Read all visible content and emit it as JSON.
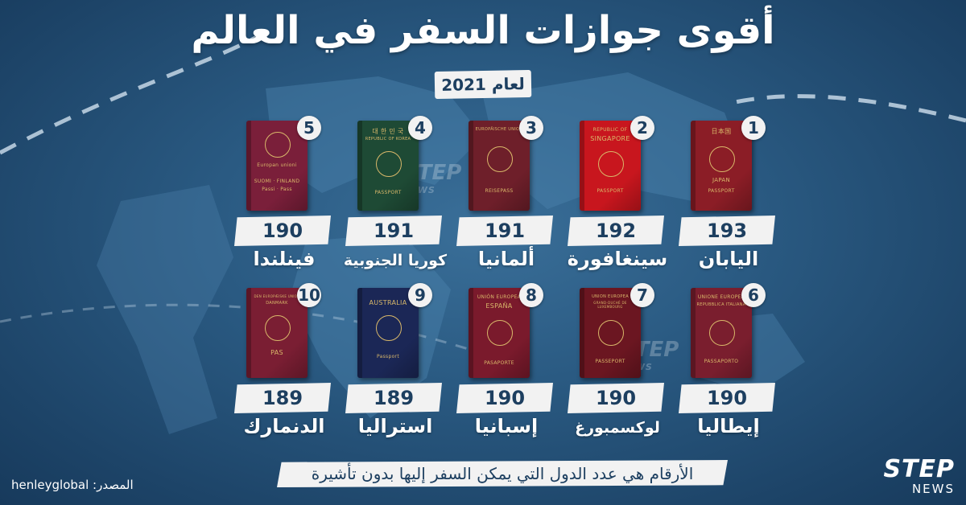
{
  "title": "أقوى جوازات السفر في العالم",
  "year_label": "لعام 2021",
  "passports": [
    {
      "rank": "1",
      "count": "193",
      "country": "اليابان",
      "color": "#8b1d26",
      "cover_top": "日本国",
      "cover_mid": "JAPAN",
      "cover_bottom": "PASSPORT"
    },
    {
      "rank": "2",
      "count": "192",
      "country": "سينغافورة",
      "color": "#c8161e",
      "cover_top": "REPUBLIC OF",
      "cover_mid": "SINGAPORE",
      "cover_bottom": "PASSPORT"
    },
    {
      "rank": "3",
      "count": "191",
      "country": "ألمانيا",
      "color": "#6e1f2a",
      "cover_top": "EUROPÄISCHE UNION",
      "cover_mid": "",
      "cover_bottom": "REISEPASS"
    },
    {
      "rank": "4",
      "count": "191",
      "country": "كوريا الجنوبية",
      "color": "#1e4a35",
      "cover_top": "대 한 민 국",
      "cover_mid": "REPUBLIC OF KOREA",
      "cover_bottom": "PASSPORT"
    },
    {
      "rank": "5",
      "count": "190",
      "country": "فينلندا",
      "color": "#7a1f3a",
      "cover_top": "Europan unioni",
      "cover_mid": "SUOMI · FINLAND",
      "cover_bottom": "Passi · Pass"
    },
    {
      "rank": "6",
      "count": "190",
      "country": "إيطاليا",
      "color": "#7a1e2e",
      "cover_top": "UNIONE EUROPEA",
      "cover_mid": "REPUBBLICA ITALIANA",
      "cover_bottom": "PASSAPORTO"
    },
    {
      "rank": "7",
      "count": "190",
      "country": "لوكسمبورغ",
      "color": "#6b1621",
      "cover_top": "UNION EUROPEA",
      "cover_mid": "GRAND-DUCHÉ DE LUXEMBOURG",
      "cover_bottom": "PASSEPORT"
    },
    {
      "rank": "8",
      "count": "190",
      "country": "إسبانيا",
      "color": "#7a1a2c",
      "cover_top": "UNIÓN EUROPEA",
      "cover_mid": "ESPAÑA",
      "cover_bottom": "PASAPORTE"
    },
    {
      "rank": "9",
      "count": "189",
      "country": "استراليا",
      "color": "#1b2756",
      "cover_top": "AUSTRALIA",
      "cover_mid": "",
      "cover_bottom": "Passport"
    },
    {
      "rank": "10",
      "count": "189",
      "country": "الدنمارك",
      "color": "#7a1e33",
      "cover_top": "DEN EUROPÆISKE UNION",
      "cover_mid": "DANMARK",
      "cover_bottom": "PAS"
    }
  ],
  "footnote": "الأرقام هي عدد الدول التي يمكن السفر إليها بدون تأشيرة",
  "source": "المصدر: henleyglobal",
  "logo": {
    "main": "STEP",
    "sub": "NEWS"
  },
  "watermark": {
    "main": "STEP",
    "sub": "NEWS"
  },
  "colors": {
    "background": "#2a5a82",
    "badge": "#f2f2f2",
    "badge_text": "#1d3f60"
  }
}
